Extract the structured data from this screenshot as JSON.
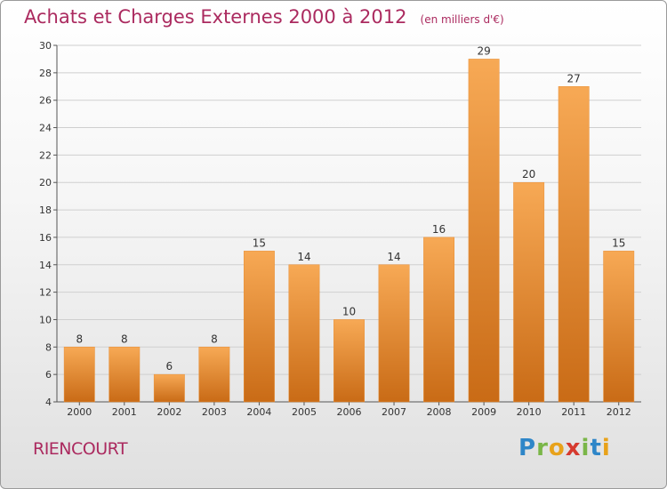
{
  "header": {
    "title": "Achats et Charges Externes 2000 à 2012",
    "unit": "(en milliers d'€)"
  },
  "footer": {
    "commune": "RIENCOURT",
    "logo": {
      "letters": [
        "P",
        "r",
        "o",
        "x",
        "i",
        "t",
        "i"
      ],
      "colors": [
        "#2e86c8",
        "#7ab648",
        "#e8a21b",
        "#d63a2f",
        "#7ab648",
        "#2e86c8",
        "#e8a21b"
      ]
    }
  },
  "chart_data": {
    "type": "bar",
    "title": "Achats et Charges Externes 2000 à 2012",
    "subtitle": "(en milliers d'€)",
    "xlabel": "",
    "ylabel": "",
    "categories": [
      "2000",
      "2001",
      "2002",
      "2003",
      "2004",
      "2005",
      "2006",
      "2007",
      "2008",
      "2009",
      "2010",
      "2011",
      "2012"
    ],
    "values": [
      8,
      8,
      6,
      8,
      15,
      14,
      10,
      14,
      16,
      29,
      20,
      27,
      15
    ],
    "ylim": [
      4,
      30
    ],
    "yticks": [
      4,
      6,
      8,
      10,
      12,
      14,
      16,
      18,
      20,
      22,
      24,
      26,
      28,
      30
    ],
    "grid": true,
    "legend": "none",
    "colors": {
      "bar_top": "#f7a955",
      "bar_bottom": "#c96b16",
      "grid": "#cfcfcf"
    }
  }
}
